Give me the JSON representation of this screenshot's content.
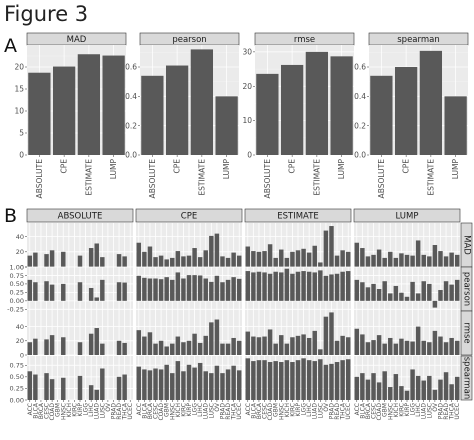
{
  "figure_title": "Figure 3",
  "panel_labels": {
    "a": "A",
    "b": "B"
  },
  "chart_data": [
    {
      "type": "bar",
      "panel": "A",
      "categories": [
        "ABSOLUTE",
        "CPE",
        "ESTIMATE",
        "LUMP"
      ],
      "facets": [
        {
          "name": "MAD",
          "ylim": [
            0,
            25
          ],
          "yticks": [
            0,
            5,
            10,
            15,
            20
          ],
          "values": [
            18.7,
            20.1,
            22.9,
            22.6
          ]
        },
        {
          "name": "pearson",
          "ylim": [
            0,
            0.75
          ],
          "yticks": [
            0.0,
            0.2,
            0.4,
            0.6
          ],
          "ytick_labels": [
            "0.0",
            "0.2",
            "0.4",
            "0.6"
          ],
          "values": [
            0.54,
            0.61,
            0.72,
            0.4
          ]
        },
        {
          "name": "rmse",
          "ylim": [
            0,
            32
          ],
          "yticks": [
            0,
            10,
            20,
            30
          ],
          "values": [
            23.6,
            26.2,
            30.0,
            28.7
          ]
        },
        {
          "name": "spearman",
          "ylim": [
            0,
            0.75
          ],
          "yticks": [
            0.0,
            0.2,
            0.4,
            0.6
          ],
          "ytick_labels": [
            "0.0",
            "0.2",
            "0.4",
            "0.6"
          ],
          "values": [
            0.54,
            0.6,
            0.71,
            0.4
          ]
        }
      ]
    },
    {
      "type": "bar",
      "panel": "B",
      "columns": [
        "ABSOLUTE",
        "CPE",
        "ESTIMATE",
        "LUMP"
      ],
      "rows": [
        "MAD",
        "pearson",
        "rmse",
        "spearman"
      ],
      "categories": [
        "ACC",
        "BLCA",
        "BRCA",
        "CESC",
        "COAD",
        "GBM",
        "HNSC",
        "KICH",
        "KIRC",
        "KIRP",
        "LGG",
        "LIHC",
        "LUAD",
        "LUSC",
        "OV",
        "PRAD",
        "READ",
        "THCA",
        "UCEC"
      ],
      "row_axes": [
        {
          "row": "MAD",
          "ylim": [
            0,
            58
          ],
          "yticks": [
            0,
            20,
            40
          ],
          "ytick_labels": [
            "0",
            "20",
            "40"
          ]
        },
        {
          "row": "pearson",
          "ylim": [
            -0.3,
            1.0
          ],
          "yticks": [
            -0.25,
            0.0,
            0.25,
            0.5,
            0.75,
            1.0
          ],
          "ytick_labels": [
            "-0.25",
            "0.00",
            "0.25",
            "0.50",
            "0.75",
            "1.00"
          ]
        },
        {
          "row": "rmse",
          "ylim": [
            0,
            62
          ],
          "yticks": [
            0,
            20,
            40
          ],
          "ytick_labels": [
            "0",
            "20",
            "40"
          ]
        },
        {
          "row": "spearman",
          "ylim": [
            0,
            0.95
          ],
          "yticks": [
            0.0,
            0.25,
            0.5,
            0.75
          ],
          "ytick_labels": [
            "0.00",
            "0.25",
            "0.50",
            "0.75"
          ]
        }
      ],
      "values": {
        "MAD": {
          "ABSOLUTE": [
            15,
            19,
            null,
            17,
            22,
            null,
            20,
            null,
            null,
            15,
            null,
            25,
            31,
            13,
            null,
            null,
            17,
            14,
            null
          ],
          "CPE": [
            32,
            20,
            27,
            13,
            15,
            10,
            12,
            21,
            14,
            15,
            25,
            13,
            22,
            41,
            44,
            14,
            12,
            19,
            15
          ],
          "ESTIMATE": [
            27,
            21,
            20,
            21,
            30,
            12,
            23,
            12,
            20,
            22,
            24,
            19,
            28,
            6,
            48,
            54,
            15,
            22,
            20
          ],
          "LUMP": [
            32,
            25,
            14,
            16,
            23,
            12,
            20,
            12,
            18,
            16,
            15,
            35,
            16,
            14,
            29,
            21,
            14,
            19,
            16
          ]
        },
        "pearson": {
          "ABSOLUTE": [
            0.62,
            0.55,
            null,
            0.58,
            0.48,
            null,
            0.5,
            null,
            null,
            0.55,
            null,
            0.38,
            0.1,
            0.62,
            null,
            null,
            0.55,
            0.54,
            null
          ],
          "CPE": [
            0.74,
            0.68,
            0.66,
            0.66,
            0.64,
            0.7,
            0.62,
            0.84,
            0.66,
            0.76,
            0.76,
            0.75,
            0.66,
            0.56,
            0.74,
            0.55,
            0.62,
            0.7,
            0.65
          ],
          "ESTIMATE": [
            0.88,
            0.84,
            0.86,
            0.84,
            0.8,
            0.86,
            0.84,
            0.95,
            0.8,
            0.86,
            0.88,
            0.86,
            0.84,
            0.9,
            0.74,
            0.78,
            0.8,
            0.86,
            0.88
          ],
          "LUMP": [
            0.62,
            0.55,
            0.4,
            0.5,
            0.35,
            0.58,
            0.22,
            0.44,
            0.24,
            0.12,
            0.56,
            0.22,
            0.58,
            0.5,
            -0.2,
            0.32,
            0.58,
            0.48,
            0.62
          ]
        },
        "rmse": {
          "ABSOLUTE": [
            18,
            23,
            null,
            22,
            28,
            null,
            25,
            null,
            null,
            18,
            null,
            30,
            38,
            16,
            null,
            null,
            20,
            17,
            null
          ],
          "CPE": [
            35,
            26,
            32,
            16,
            20,
            12,
            16,
            26,
            18,
            20,
            30,
            17,
            27,
            46,
            50,
            16,
            16,
            24,
            20
          ],
          "ESTIMATE": [
            33,
            26,
            25,
            26,
            36,
            16,
            28,
            16,
            25,
            27,
            29,
            24,
            34,
            8,
            54,
            60,
            20,
            27,
            25
          ],
          "LUMP": [
            37,
            29,
            18,
            21,
            28,
            16,
            24,
            16,
            23,
            20,
            19,
            40,
            20,
            18,
            34,
            26,
            18,
            24,
            20
          ]
        },
        "spearman": {
          "ABSOLUTE": [
            0.62,
            0.55,
            null,
            0.58,
            0.45,
            null,
            0.48,
            null,
            null,
            0.52,
            null,
            0.32,
            0.22,
            0.68,
            null,
            null,
            0.5,
            0.55,
            null
          ],
          "CPE": [
            0.72,
            0.66,
            0.64,
            0.68,
            0.66,
            0.76,
            0.58,
            0.84,
            0.62,
            0.76,
            0.7,
            0.8,
            0.62,
            0.58,
            0.74,
            0.58,
            0.66,
            0.74,
            0.64
          ],
          "ESTIMATE": [
            0.9,
            0.84,
            0.86,
            0.86,
            0.82,
            0.84,
            0.82,
            0.86,
            0.82,
            0.86,
            0.9,
            0.86,
            0.84,
            0.88,
            0.76,
            0.78,
            0.82,
            0.86,
            0.88
          ],
          "LUMP": [
            0.5,
            0.58,
            0.44,
            0.58,
            0.38,
            0.62,
            0.28,
            0.56,
            0.3,
            0.2,
            0.66,
            0.52,
            0.42,
            0.52,
            0.22,
            0.44,
            0.6,
            0.34,
            0.5
          ]
        }
      }
    }
  ]
}
